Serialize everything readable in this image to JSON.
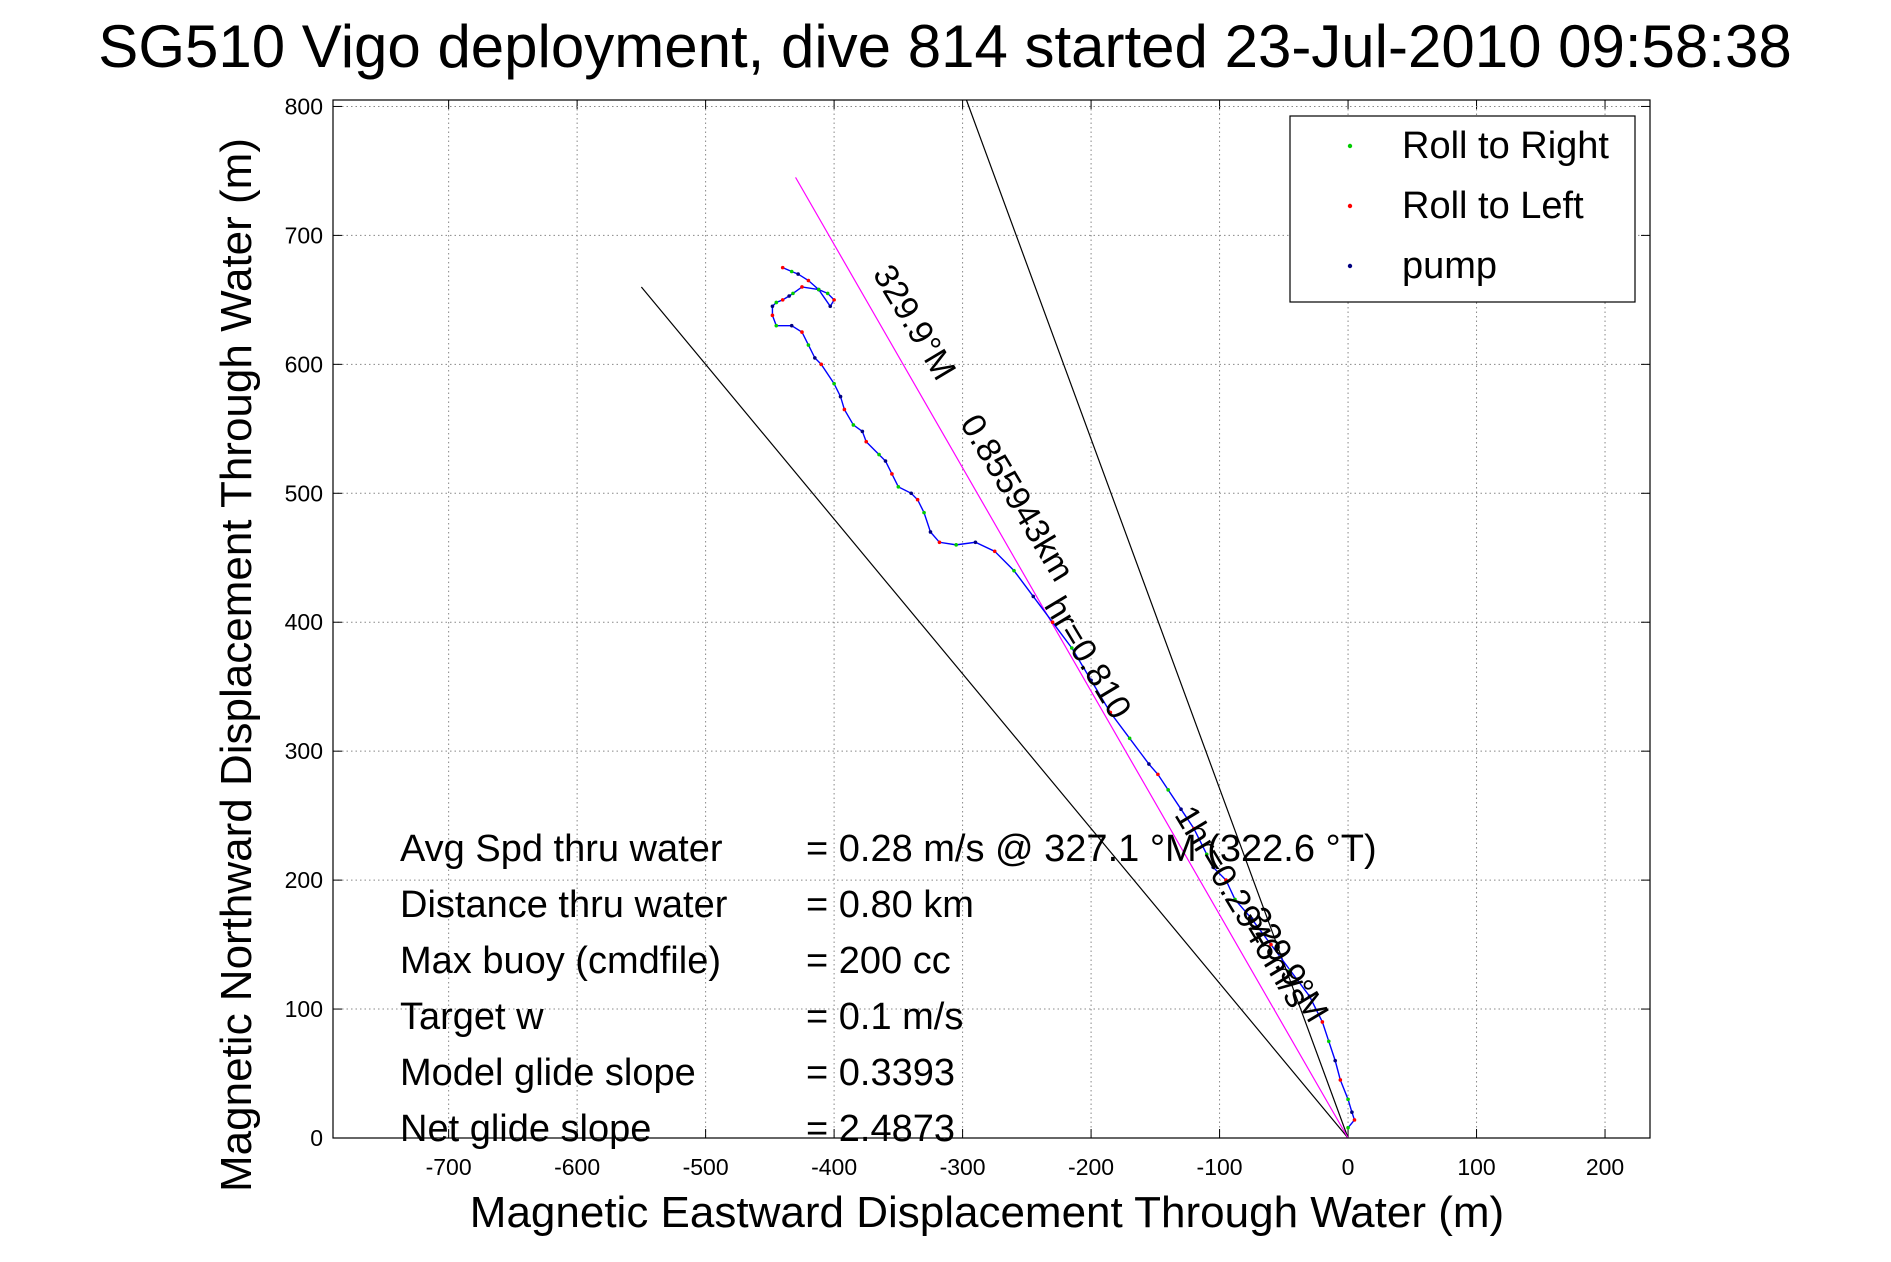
{
  "chart_data": {
    "type": "line",
    "title": "SG510 Vigo deployment, dive 814 started 23-Jul-2010 09:58:38",
    "xlabel": "Magnetic Eastward Displacement Through Water (m)",
    "ylabel": "Magnetic Northward Displacement Through Water (m)",
    "xlim": [
      -790,
      235
    ],
    "ylim": [
      0,
      805
    ],
    "xticks": [
      -700,
      -600,
      -500,
      -400,
      -300,
      -200,
      -100,
      0,
      100,
      200
    ],
    "yticks": [
      0,
      100,
      200,
      300,
      400,
      500,
      600,
      700,
      800
    ],
    "xtick_labels": [
      "-700",
      "-600",
      "-500",
      "-400",
      "-300",
      "-200",
      "-100",
      "0",
      "100",
      "200"
    ],
    "ytick_labels": [
      "0",
      "100",
      "200",
      "300",
      "400",
      "500",
      "600",
      "700",
      "800"
    ],
    "grid": true,
    "legend_position": "top-right",
    "legend": [
      {
        "label": "Roll to Right",
        "color": "#00cc00"
      },
      {
        "label": "Roll to Left",
        "color": "#ff0000"
      },
      {
        "label": "pump",
        "color": "#000080"
      }
    ],
    "series": [
      {
        "color": "#0000ff",
        "x": [
          0,
          5,
          3,
          0,
          -6,
          -10,
          -15,
          -20,
          -30,
          -45,
          -60,
          -75,
          -88,
          -95,
          -105,
          -110,
          -120,
          -130,
          -140,
          -148,
          -155,
          -170,
          -185,
          -200,
          -215,
          -230,
          -245,
          -260,
          -275,
          -290,
          -305,
          -318,
          -325,
          -330,
          -335,
          -340,
          -350,
          -355,
          -360,
          -365,
          -375,
          -378,
          -385,
          -392,
          -395,
          -400,
          -410,
          -415,
          -420,
          -425,
          -433,
          -445,
          -448,
          -448,
          -445,
          -440,
          -435,
          -432,
          -425,
          -412,
          -405,
          -400,
          -403,
          -412,
          -420,
          -428,
          -433,
          -440
        ],
        "y": [
          8,
          14,
          20,
          30,
          45,
          60,
          75,
          90,
          110,
          130,
          150,
          170,
          185,
          200,
          210,
          220,
          240,
          255,
          270,
          282,
          290,
          310,
          330,
          355,
          380,
          400,
          420,
          440,
          455,
          462,
          460,
          462,
          470,
          485,
          495,
          500,
          505,
          515,
          525,
          530,
          540,
          548,
          553,
          565,
          575,
          585,
          600,
          605,
          615,
          625,
          630,
          630,
          638,
          645,
          648,
          650,
          653,
          655,
          660,
          658,
          655,
          650,
          645,
          658,
          665,
          670,
          672,
          675
        ]
      }
    ],
    "reference_lines": [
      {
        "x": [
          0,
          -550
        ],
        "y": [
          0,
          660
        ],
        "color": "#000000"
      },
      {
        "x": [
          0,
          -297
        ],
        "y": [
          0,
          805
        ],
        "color": "#000000"
      },
      {
        "x": [
          0,
          -430
        ],
        "y": [
          0,
          745
        ],
        "color": "#ff00ff"
      }
    ],
    "annotations": [
      {
        "text": "329.9°M",
        "x": -345,
        "y": 628,
        "angle": 59
      },
      {
        "text": "0.855943km",
        "x": -265,
        "y": 492,
        "angle": 59
      },
      {
        "text": "hr=0.810",
        "x": -210,
        "y": 368,
        "angle": 59
      },
      {
        "text": "1hr=0.2946m/s",
        "x": -90,
        "y": 175,
        "angle": 59
      },
      {
        "text": "329.9°M",
        "x": -55,
        "y": 130,
        "angle": 59
      }
    ],
    "stats": [
      {
        "label": "Avg Spd thru water",
        "value": "=  0.28 m/s @ 327.1 °M (322.6 °T)"
      },
      {
        "label": "Distance thru water",
        "value": "=  0.80 km"
      },
      {
        "label": "Max buoy (cmdfile)",
        "value": "= 200 cc"
      },
      {
        "label": "Target w",
        "value": "= 0.1 m/s"
      },
      {
        "label": "Model glide slope",
        "value": "= 0.3393"
      },
      {
        "label": "Net glide slope",
        "value": "= 2.4873"
      }
    ]
  }
}
